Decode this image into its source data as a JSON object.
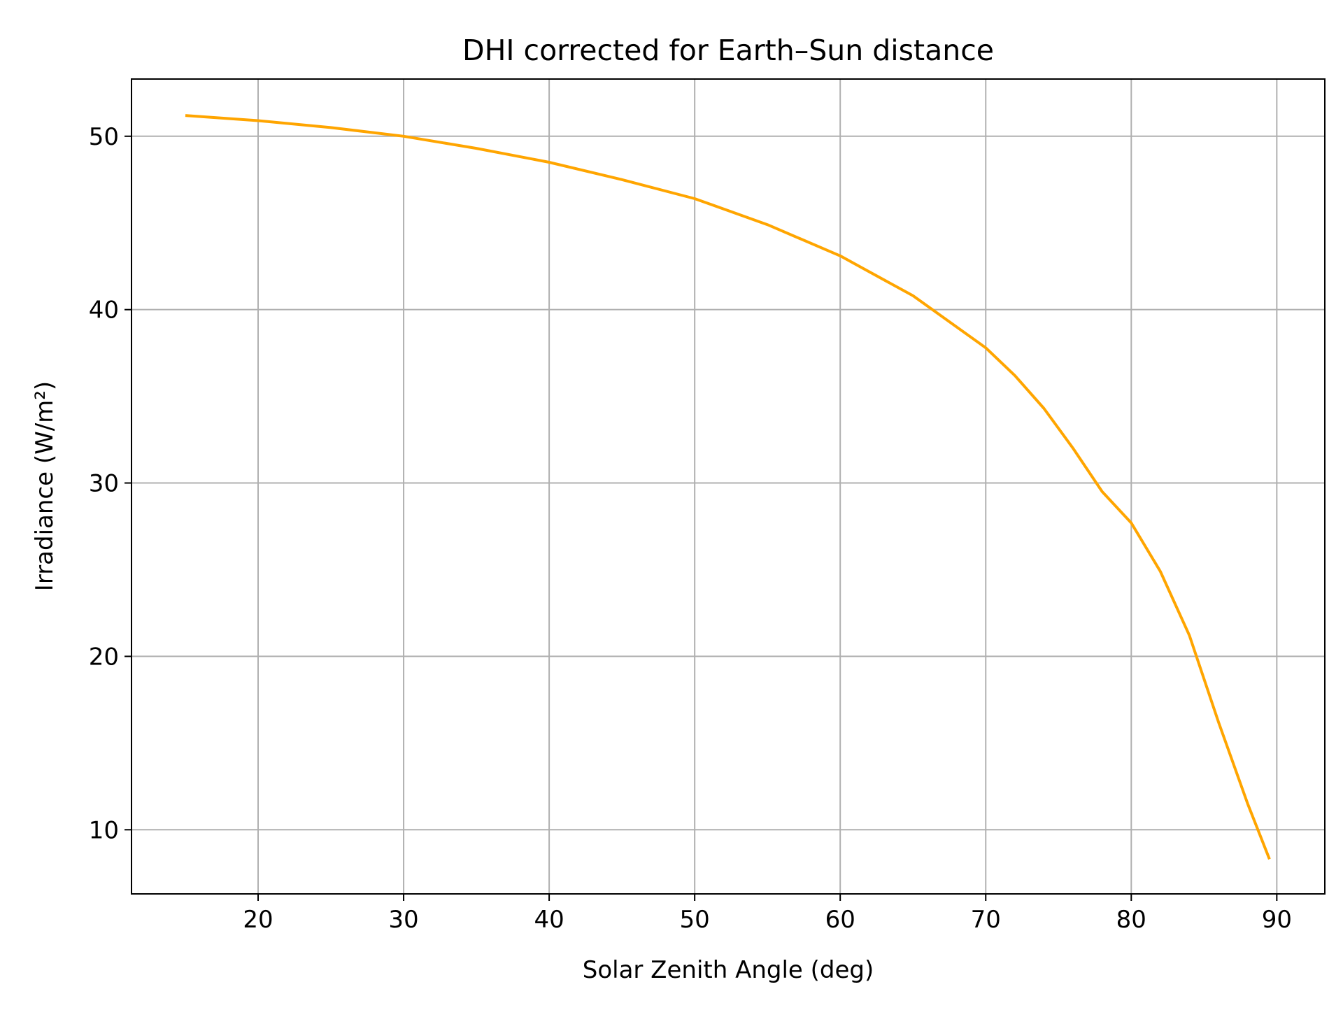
{
  "chart_data": {
    "type": "line",
    "title": "DHI corrected for Earth–Sun distance",
    "xlabel": "Solar Zenith Angle (deg)",
    "ylabel": "Irradiance (W/m²)",
    "xlim": [
      11.3,
      93.3
    ],
    "ylim": [
      6.3,
      53.3
    ],
    "xticks": [
      20,
      30,
      40,
      50,
      60,
      70,
      80,
      90
    ],
    "yticks": [
      10,
      20,
      30,
      40,
      50
    ],
    "grid": true,
    "legend": "none",
    "series": [
      {
        "color": "#FFA500",
        "x": [
          15,
          20,
          25,
          30,
          35,
          40,
          45,
          50,
          55,
          60,
          65,
          70,
          72,
          74,
          76,
          78,
          80,
          82,
          84,
          86,
          88,
          89.5
        ],
        "y": [
          51.2,
          50.9,
          50.5,
          50.0,
          49.3,
          48.5,
          47.5,
          46.4,
          44.9,
          43.1,
          40.8,
          37.8,
          36.2,
          34.3,
          32.0,
          29.5,
          27.7,
          24.9,
          21.2,
          16.2,
          11.5,
          8.3
        ]
      }
    ]
  }
}
